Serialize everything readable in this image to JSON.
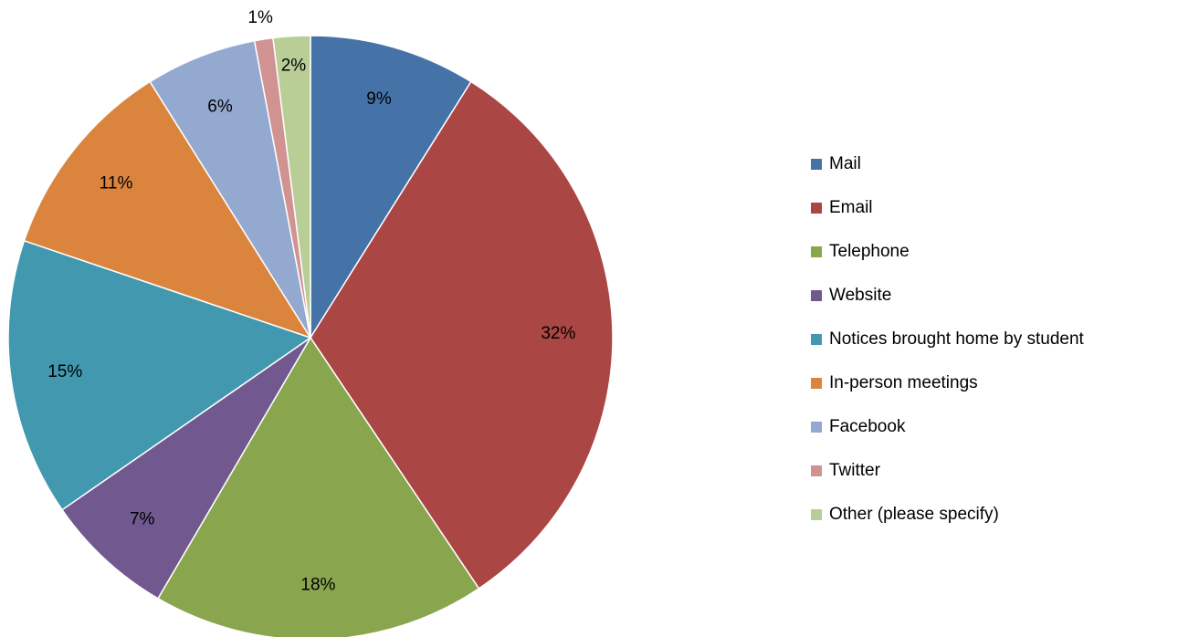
{
  "chart_data": {
    "type": "pie",
    "categories": [
      "Mail",
      "Email",
      "Telephone",
      "Website",
      "Notices brought home by student",
      "In-person meetings",
      "Facebook",
      "Twitter",
      "Other (please specify)"
    ],
    "values": [
      9,
      32,
      18,
      7,
      15,
      11,
      6,
      1,
      2
    ],
    "value_labels": [
      "9%",
      "32%",
      "18%",
      "7%",
      "15%",
      "11%",
      "6%",
      "1%",
      "2%"
    ],
    "colors": [
      "#4572a7",
      "#aa4643",
      "#89a54e",
      "#71588f",
      "#4198af",
      "#db843d",
      "#93a9cf",
      "#d19392",
      "#b9cd96"
    ],
    "legend": "right"
  }
}
